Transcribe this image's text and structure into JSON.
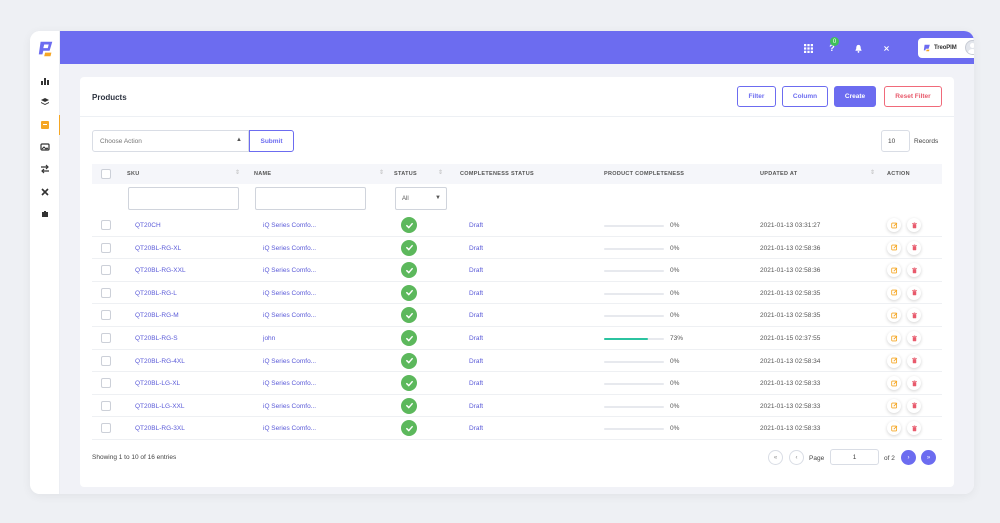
{
  "app": {
    "brand_name": "TreoPIM"
  },
  "topbar": {
    "notification_count": "0"
  },
  "sidebar": {
    "items": [
      {
        "icon": "bar-chart-icon"
      },
      {
        "icon": "layers-icon"
      },
      {
        "icon": "box-icon",
        "active": true
      },
      {
        "icon": "image-icon"
      },
      {
        "icon": "transfer-icon"
      },
      {
        "icon": "tools-icon"
      },
      {
        "icon": "puzzle-icon"
      }
    ]
  },
  "header": {
    "title": "Products",
    "buttons": {
      "filter": "Filter",
      "column": "Column",
      "create": "Create",
      "reset_filter": "Reset Filter"
    }
  },
  "toolbar": {
    "action_placeholder": "Choose Action",
    "submit": "Submit",
    "records_value": "10",
    "records_label": "Records"
  },
  "table": {
    "columns": {
      "sku": "SKU",
      "name": "NAME",
      "status": "STATUS",
      "completeness_status": "COMPLETENESS STATUS",
      "product_completeness": "PRODUCT COMPLETENESS",
      "updated_at": "UPDATED AT",
      "action": "ACTION"
    },
    "status_filter_value": "All",
    "rows": [
      {
        "sku": "QT20CH",
        "name": "iQ Series Comfo...",
        "completeness_status": "Draft",
        "completeness": 0,
        "completeness_text": "0%",
        "updated_at": "2021-01-13 03:31:27"
      },
      {
        "sku": "QT20BL-RG-XL",
        "name": "iQ Series Comfo...",
        "completeness_status": "Draft",
        "completeness": 0,
        "completeness_text": "0%",
        "updated_at": "2021-01-13 02:58:36"
      },
      {
        "sku": "QT20BL-RG-XXL",
        "name": "iQ Series Comfo...",
        "completeness_status": "Draft",
        "completeness": 0,
        "completeness_text": "0%",
        "updated_at": "2021-01-13 02:58:36"
      },
      {
        "sku": "QT20BL-RG-L",
        "name": "iQ Series Comfo...",
        "completeness_status": "Draft",
        "completeness": 0,
        "completeness_text": "0%",
        "updated_at": "2021-01-13 02:58:35"
      },
      {
        "sku": "QT20BL-RG-M",
        "name": "iQ Series Comfo...",
        "completeness_status": "Draft",
        "completeness": 0,
        "completeness_text": "0%",
        "updated_at": "2021-01-13 02:58:35"
      },
      {
        "sku": "QT20BL-RG-S",
        "name": "john",
        "completeness_status": "Draft",
        "completeness": 73,
        "completeness_text": "73%",
        "updated_at": "2021-01-15 02:37:55"
      },
      {
        "sku": "QT20BL-RG-4XL",
        "name": "iQ Series Comfo...",
        "completeness_status": "Draft",
        "completeness": 0,
        "completeness_text": "0%",
        "updated_at": "2021-01-13 02:58:34"
      },
      {
        "sku": "QT20BL-LG-XL",
        "name": "iQ Series Comfo...",
        "completeness_status": "Draft",
        "completeness": 0,
        "completeness_text": "0%",
        "updated_at": "2021-01-13 02:58:33"
      },
      {
        "sku": "QT20BL-LG-XXL",
        "name": "iQ Series Comfo...",
        "completeness_status": "Draft",
        "completeness": 0,
        "completeness_text": "0%",
        "updated_at": "2021-01-13 02:58:33"
      },
      {
        "sku": "QT20BL-RG-3XL",
        "name": "iQ Series Comfo...",
        "completeness_status": "Draft",
        "completeness": 0,
        "completeness_text": "0%",
        "updated_at": "2021-01-13 02:58:33"
      }
    ]
  },
  "footer": {
    "entries_text": "Showing 1 to 10 of 16 entries",
    "page_label": "Page",
    "page_value": "1",
    "of_label": "of 2"
  },
  "colors": {
    "accent": "#6c6cf0",
    "success": "#5cb85c",
    "progress": "#2bc3a0",
    "danger": "#e85a6c",
    "edit": "#f5a623"
  }
}
